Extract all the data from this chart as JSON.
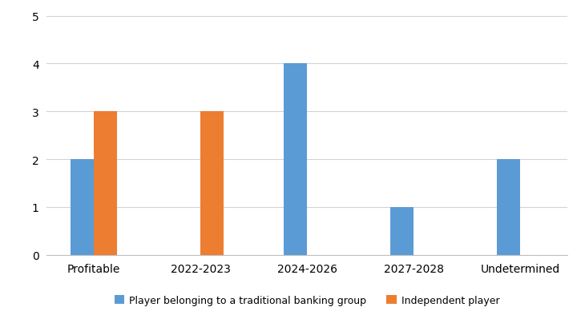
{
  "categories": [
    "Profitable",
    "2022-2023",
    "2024-2026",
    "2027-2028",
    "Undetermined"
  ],
  "banking_group": [
    2,
    0,
    4,
    1,
    2
  ],
  "independent": [
    3,
    3,
    0,
    0,
    0
  ],
  "banking_color": "#5B9BD5",
  "independent_color": "#ED7D31",
  "ylim": [
    0,
    5
  ],
  "yticks": [
    0,
    1,
    2,
    3,
    4,
    5
  ],
  "bar_width": 0.22,
  "legend_labels": [
    "Player belonging to a traditional banking group",
    "Independent player"
  ],
  "background_color": "#ffffff",
  "grid_color": "#d3d3d3"
}
